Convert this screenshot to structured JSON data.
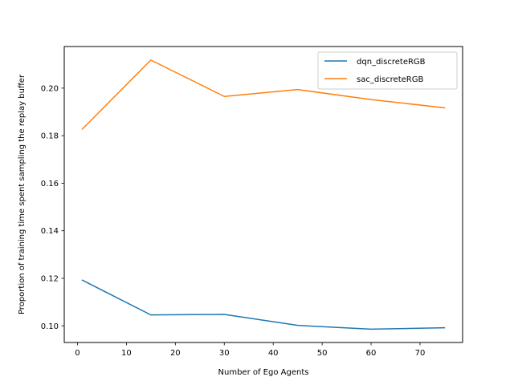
{
  "chart_data": {
    "type": "line",
    "title": "",
    "xlabel": "Number of Ego Agents",
    "ylabel": "Proportion of training time spent sampling the replay buffer",
    "x": [
      1,
      15,
      30,
      45,
      60,
      75
    ],
    "series": [
      {
        "name": "dqn_discreteRGB",
        "color": "#1f77b4",
        "values": [
          0.1192,
          0.1046,
          0.1048,
          0.1002,
          0.0986,
          0.0992
        ]
      },
      {
        "name": "sac_discreteRGB",
        "color": "#ff7f0e",
        "values": [
          0.1828,
          0.2118,
          0.1965,
          0.1994,
          0.1952,
          0.1917
        ]
      }
    ],
    "xlim": [
      -2.7,
      78.7
    ],
    "ylim": [
      0.093,
      0.2175
    ],
    "xticks": [
      0,
      10,
      20,
      30,
      40,
      50,
      60,
      70
    ],
    "yticks": [
      0.1,
      0.12,
      0.14,
      0.16,
      0.18,
      0.2
    ],
    "ytick_labels": [
      "0.10",
      "0.12",
      "0.14",
      "0.16",
      "0.18",
      "0.20"
    ],
    "grid": false,
    "legend_position": "top-right"
  }
}
